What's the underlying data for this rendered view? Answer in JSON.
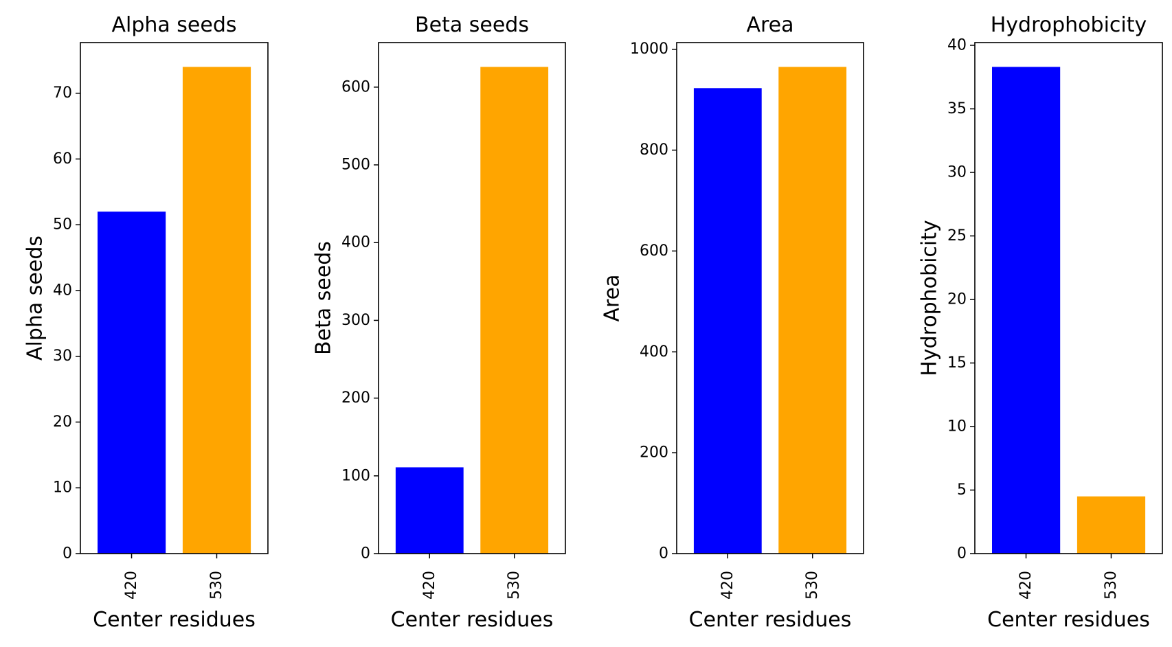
{
  "chart_data": [
    {
      "type": "bar",
      "title": "Alpha seeds",
      "xlabel": "Center residues",
      "ylabel": "Alpha seeds",
      "categories": [
        "420",
        "530"
      ],
      "values": [
        52,
        74
      ],
      "colors": [
        "#0000ff",
        "#ffa500"
      ],
      "ylim": [
        0,
        77.7
      ],
      "yticks": [
        0,
        10,
        20,
        30,
        40,
        50,
        60,
        70
      ],
      "ytick_labels": [
        "0",
        "10",
        "20",
        "30",
        "40",
        "50",
        "60",
        "70"
      ],
      "grid": false
    },
    {
      "type": "bar",
      "title": "Beta seeds",
      "xlabel": "Center residues",
      "ylabel": "Beta seeds",
      "categories": [
        "420",
        "530"
      ],
      "values": [
        111,
        626
      ],
      "colors": [
        "#0000ff",
        "#ffa500"
      ],
      "ylim": [
        0,
        657.3
      ],
      "yticks": [
        0,
        100,
        200,
        300,
        400,
        500,
        600
      ],
      "ytick_labels": [
        "0",
        "100",
        "200",
        "300",
        "400",
        "500",
        "600"
      ],
      "grid": false
    },
    {
      "type": "bar",
      "title": "Area",
      "xlabel": "Center residues",
      "ylabel": "Area",
      "categories": [
        "420",
        "530"
      ],
      "values": [
        923,
        965
      ],
      "colors": [
        "#0000ff",
        "#ffa500"
      ],
      "ylim": [
        0,
        1013.25
      ],
      "yticks": [
        0,
        200,
        400,
        600,
        800,
        1000
      ],
      "ytick_labels": [
        "0",
        "200",
        "400",
        "600",
        "800",
        "1000"
      ],
      "grid": false
    },
    {
      "type": "bar",
      "title": "Hydrophobicity",
      "xlabel": "Center residues",
      "ylabel": "Hydrophobicity",
      "categories": [
        "420",
        "530"
      ],
      "values": [
        38.3,
        4.5
      ],
      "colors": [
        "#0000ff",
        "#ffa500"
      ],
      "ylim": [
        0,
        40.215
      ],
      "yticks": [
        0,
        5,
        10,
        15,
        20,
        25,
        30,
        35,
        40
      ],
      "ytick_labels": [
        "0",
        "5",
        "10",
        "15",
        "20",
        "25",
        "30",
        "35",
        "40"
      ],
      "grid": false
    }
  ]
}
